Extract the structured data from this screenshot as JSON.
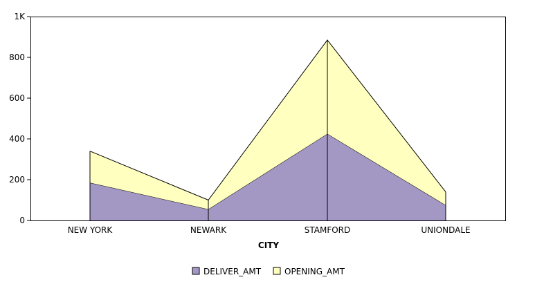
{
  "chart_data": {
    "type": "area",
    "stacked": true,
    "title": "",
    "xlabel": "CITY",
    "ylabel": "",
    "categories": [
      "NEW YORK",
      "NEWARK",
      "STAMFORD",
      "UNIONDALE"
    ],
    "series": [
      {
        "name": "DELIVER_AMT",
        "values": [
          185,
          55,
          425,
          75
        ],
        "color": "#a397c4"
      },
      {
        "name": "OPENING_AMT",
        "values": [
          155,
          45,
          460,
          65
        ],
        "color": "#ffffc0"
      }
    ],
    "ylim": [
      0,
      1000
    ],
    "y_ticks": [
      {
        "value": 0,
        "label": "0"
      },
      {
        "value": 200,
        "label": "200"
      },
      {
        "value": 400,
        "label": "400"
      },
      {
        "value": 600,
        "label": "600"
      },
      {
        "value": 800,
        "label": "800"
      },
      {
        "value": 1000,
        "label": "1K"
      }
    ],
    "grid": false,
    "legend_position": "bottom-center"
  }
}
